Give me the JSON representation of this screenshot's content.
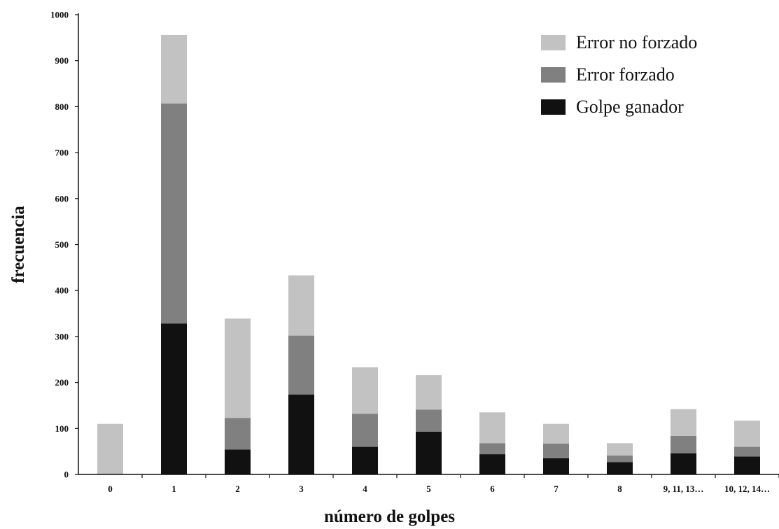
{
  "chart_data": {
    "type": "bar",
    "stacked": true,
    "title": "",
    "xlabel": "número de golpes",
    "ylabel": "frecuencia",
    "ylim": [
      0,
      1000
    ],
    "yticks": [
      0,
      100,
      200,
      300,
      400,
      500,
      600,
      700,
      800,
      900,
      1000
    ],
    "categories": [
      "0",
      "1",
      "2",
      "3",
      "4",
      "5",
      "6",
      "7",
      "8",
      "9, 11, 13…",
      "10, 12, 14…"
    ],
    "series": [
      {
        "name": "Golpe ganador",
        "color": "#111111",
        "values": [
          0,
          328,
          54,
          174,
          60,
          93,
          44,
          35,
          27,
          46,
          39
        ]
      },
      {
        "name": "Error forzado",
        "color": "#808080",
        "values": [
          0,
          479,
          69,
          128,
          72,
          48,
          24,
          32,
          14,
          38,
          21
        ]
      },
      {
        "name": "Error no forzado",
        "color": "#c2c2c2",
        "values": [
          110,
          149,
          216,
          131,
          101,
          75,
          67,
          43,
          27,
          58,
          57
        ]
      }
    ],
    "legend": {
      "position": "top-right",
      "order": [
        "Error no forzado",
        "Error forzado",
        "Golpe ganador"
      ]
    },
    "grid": false
  }
}
